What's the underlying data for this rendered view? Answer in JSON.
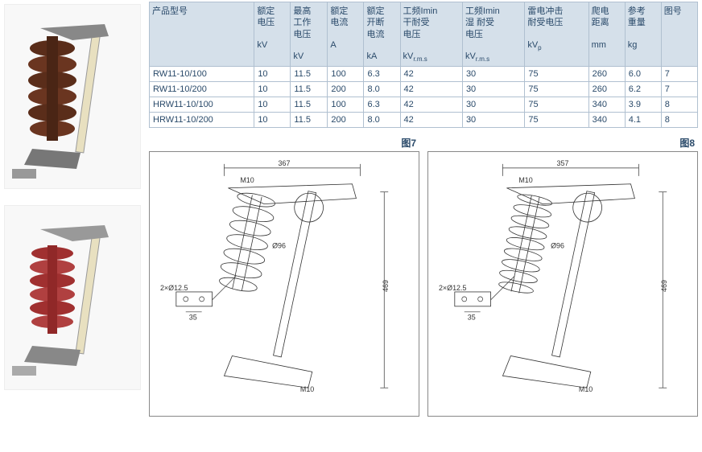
{
  "table": {
    "header_bg": "#d5e0ea",
    "border_color": "#b0c0d0",
    "text_color": "#2a4a6a",
    "columns": [
      {
        "label": "产品型号",
        "unit": ""
      },
      {
        "label": "额定\n电压",
        "unit": "kV"
      },
      {
        "label": "最高\n工作\n电压",
        "unit": "kV"
      },
      {
        "label": "额定\n电流",
        "unit": "A"
      },
      {
        "label": "额定\n开断\n电流",
        "unit": "kA"
      },
      {
        "label": "工频Imin\n干耐受\n电压",
        "unit": "kVr.m.s"
      },
      {
        "label": "工频Imin\n湿 耐受\n电压",
        "unit": "kVr.m.s"
      },
      {
        "label": "雷电冲击\n耐受电压",
        "unit": "kVp"
      },
      {
        "label": "爬电\n距离",
        "unit": "mm"
      },
      {
        "label": "参考\n重量",
        "unit": "kg"
      },
      {
        "label": "图号",
        "unit": ""
      }
    ],
    "rows": [
      [
        "RW11-10/100",
        "10",
        "11.5",
        "100",
        "6.3",
        "42",
        "30",
        "75",
        "260",
        "6.0",
        "7"
      ],
      [
        "RW11-10/200",
        "10",
        "11.5",
        "200",
        "8.0",
        "42",
        "30",
        "75",
        "260",
        "6.2",
        "7"
      ],
      [
        "HRW11-10/100",
        "10",
        "11.5",
        "100",
        "6.3",
        "42",
        "30",
        "75",
        "340",
        "3.9",
        "8"
      ],
      [
        "HRW11-10/200",
        "10",
        "11.5",
        "200",
        "8.0",
        "42",
        "30",
        "75",
        "340",
        "4.1",
        "8"
      ]
    ]
  },
  "figures": {
    "fig7": {
      "label": "图7",
      "dims": {
        "width": "367",
        "height": "469",
        "bolt_top": "M10",
        "bolt_bot": "M10",
        "diameter": "Ø96",
        "base_hole": "2×Ø12.5",
        "base_w": "35"
      }
    },
    "fig8": {
      "label": "图8",
      "dims": {
        "width": "357",
        "height": "469",
        "bolt_top": "M10",
        "bolt_bot": "M10",
        "diameter": "Ø96",
        "base_hole": "2×Ø12.5",
        "base_w": "35"
      }
    }
  },
  "products": {
    "img1_alt": "porcelain-insulator-fuse-cutout",
    "img2_alt": "polymer-insulator-fuse-cutout"
  }
}
